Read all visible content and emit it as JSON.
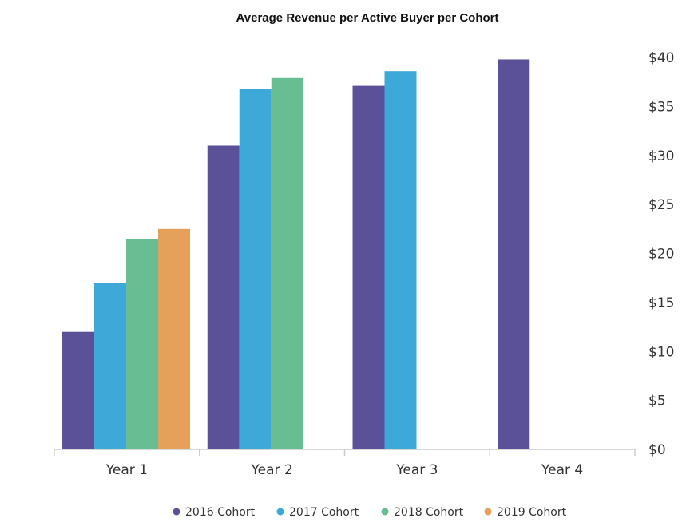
{
  "chart_data": {
    "type": "bar",
    "title": "Average Revenue per Active Buyer per Cohort",
    "xlabel": "",
    "ylabel": "",
    "categories": [
      "Year 1",
      "Year 2",
      "Year 3",
      "Year 4"
    ],
    "series": [
      {
        "name": "2016 Cohort",
        "color": "#5b5199",
        "values": [
          12,
          31,
          37.1,
          39.8
        ]
      },
      {
        "name": "2017 Cohort",
        "color": "#3ea9d8",
        "values": [
          17,
          36.8,
          38.6,
          null
        ]
      },
      {
        "name": "2018 Cohort",
        "color": "#68bd92",
        "values": [
          21.5,
          37.9,
          null,
          null
        ]
      },
      {
        "name": "2019 Cohort",
        "color": "#e5a05a",
        "values": [
          22.5,
          null,
          null,
          null
        ]
      }
    ],
    "ylim": [
      0,
      40
    ],
    "yticks": [
      0,
      5,
      10,
      15,
      20,
      25,
      30,
      35,
      40
    ],
    "ytick_labels": [
      "$0",
      "$5",
      "$10",
      "$15",
      "$20",
      "$25",
      "$30",
      "$35",
      "$40"
    ],
    "y_axis_side": "right",
    "grid": false,
    "legend_position": "bottom-center"
  }
}
